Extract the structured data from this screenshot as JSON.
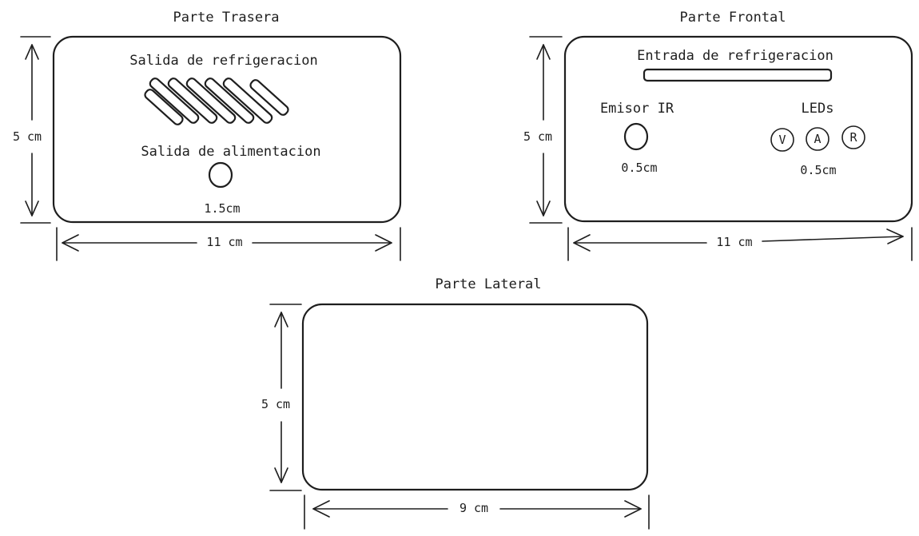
{
  "rear": {
    "title": "Parte Trasera",
    "cooling_outlet_label": "Salida de refrigeracion",
    "power_outlet_label": "Salida de alimentacion",
    "power_hole_size": "1.5cm",
    "height_label": "5 cm",
    "width_label": "11 cm"
  },
  "front": {
    "title": "Parte Frontal",
    "cooling_inlet_label": "Entrada de refrigeracion",
    "ir_label": "Emisor IR",
    "ir_size": "0.5cm",
    "leds_label": "LEDs",
    "leds": [
      "V",
      "A",
      "R"
    ],
    "leds_size": "0.5cm",
    "height_label": "5 cm",
    "width_label": "11 cm"
  },
  "side": {
    "title": "Parte Lateral",
    "height_label": "5 cm",
    "width_label": "9 cm"
  }
}
